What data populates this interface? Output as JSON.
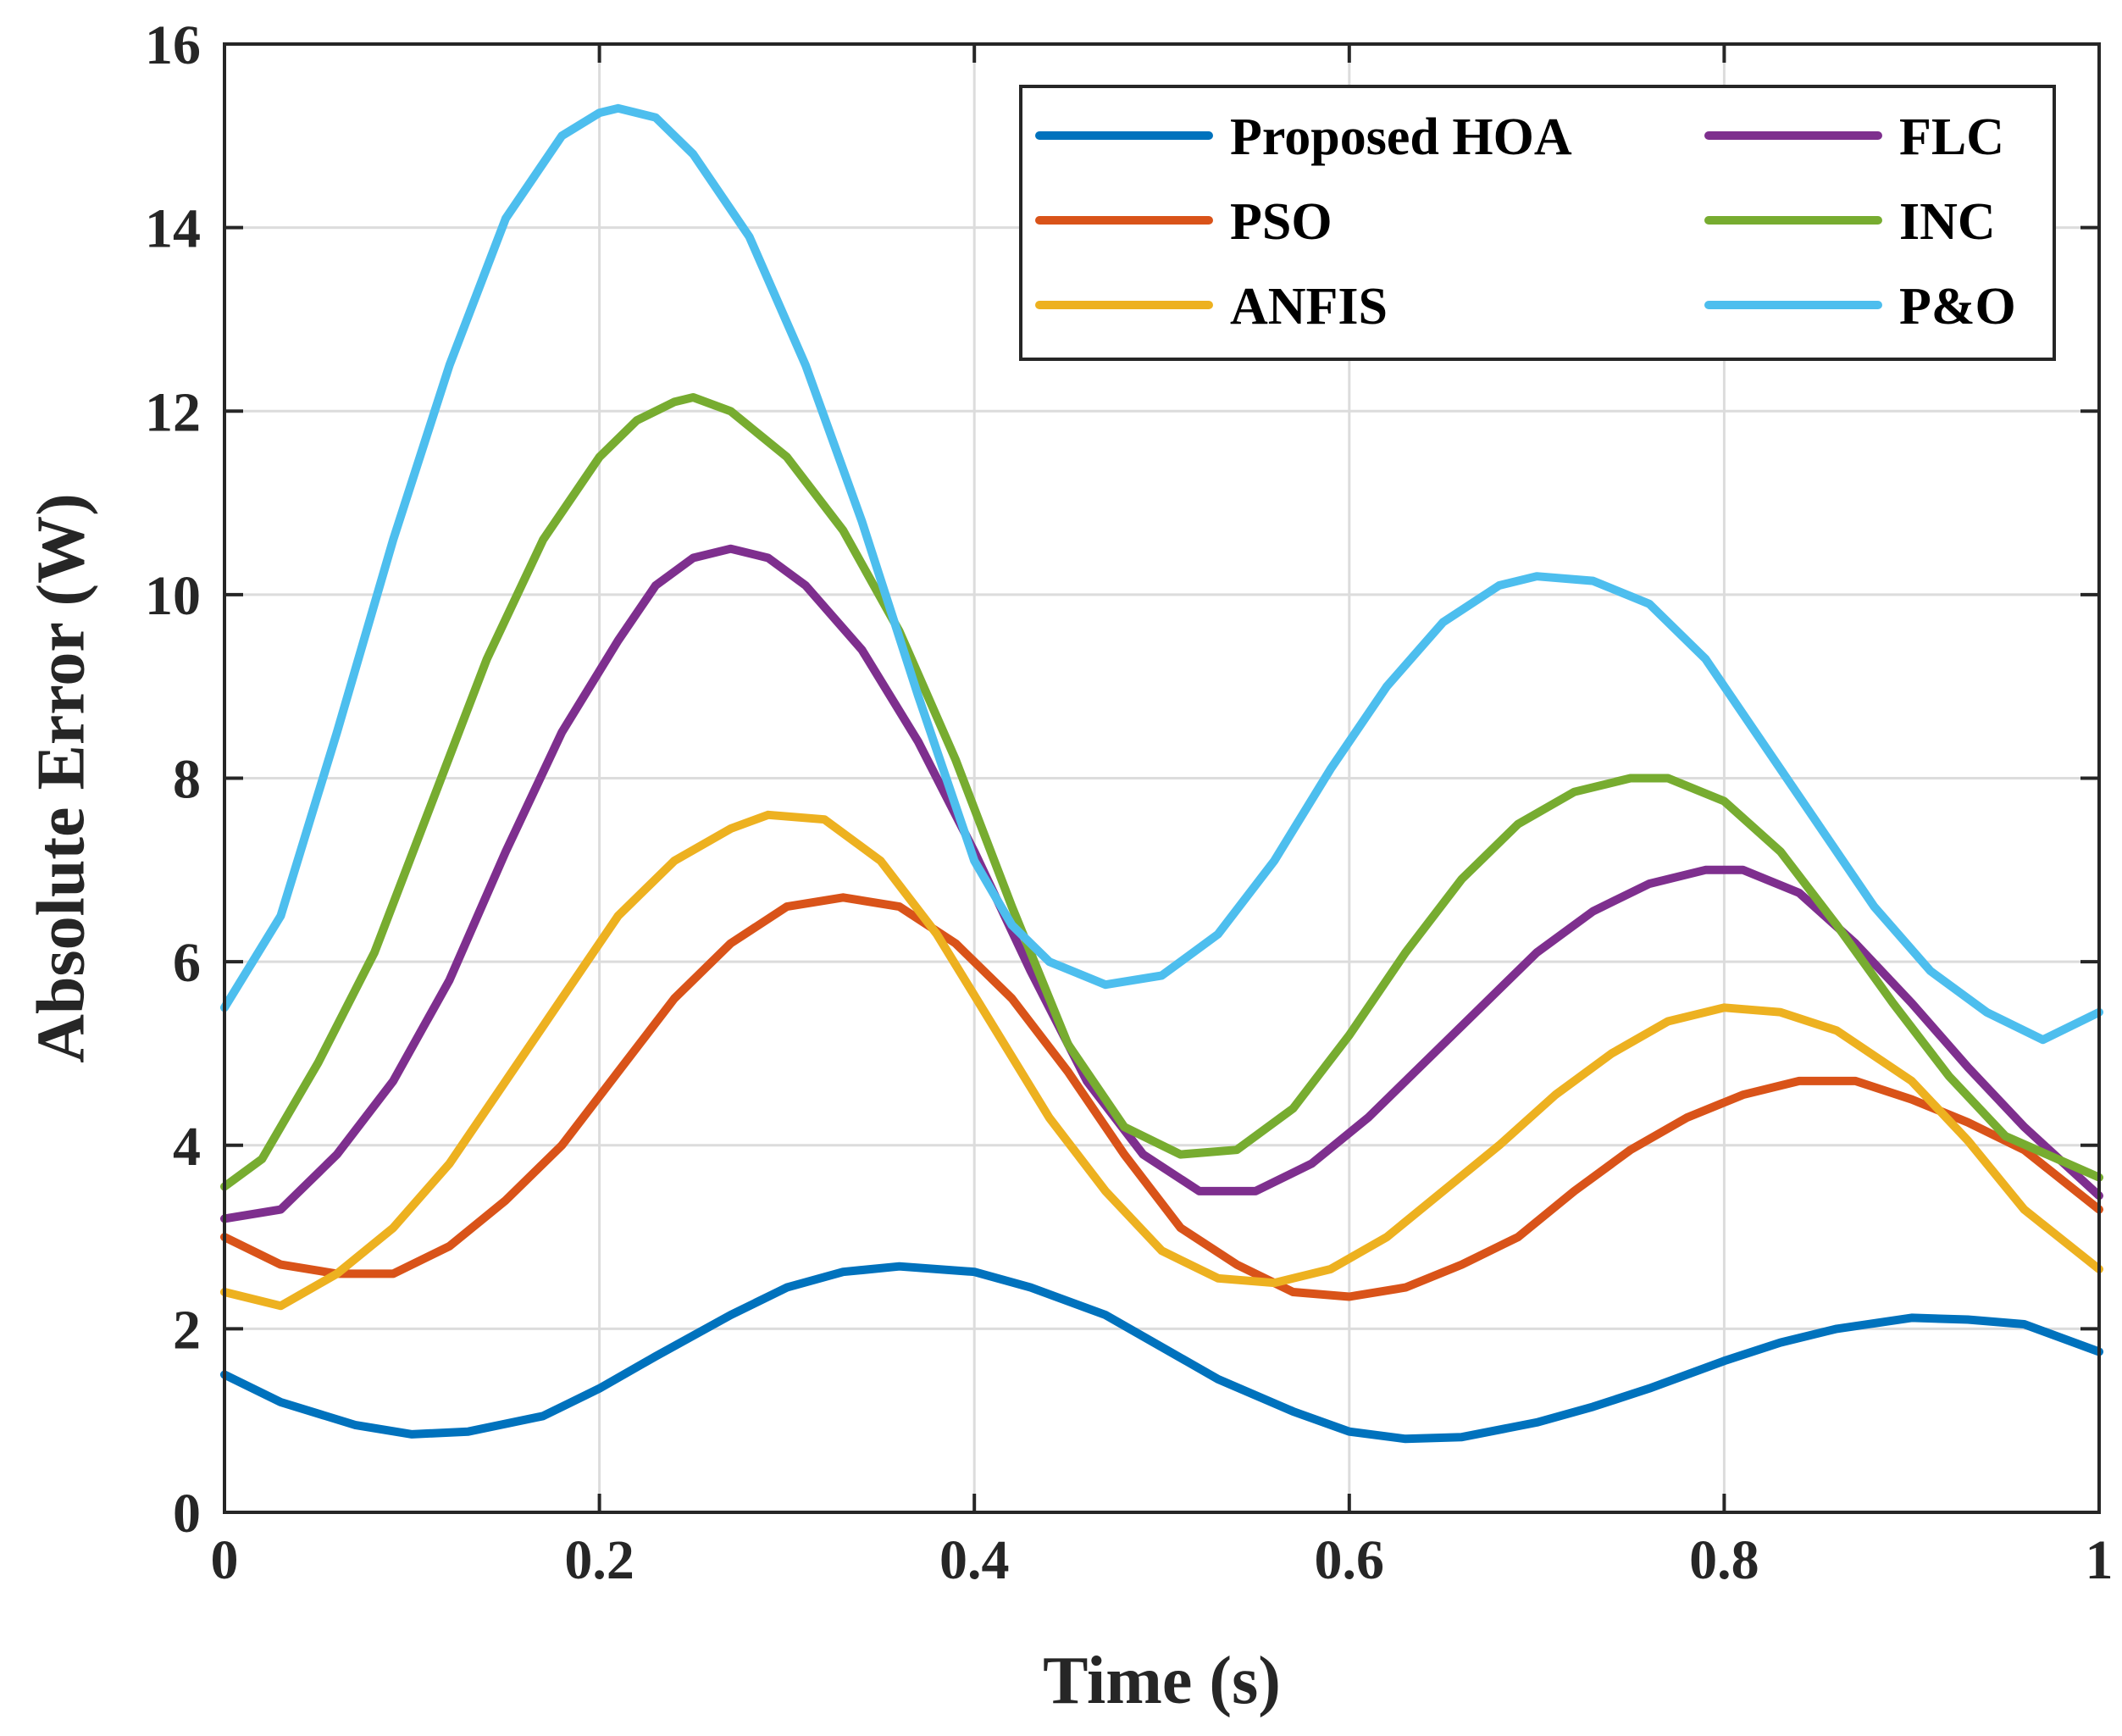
{
  "chart_data": {
    "type": "line",
    "title": "",
    "xlabel": "Time (s)",
    "ylabel": "Absolute Error (W)",
    "xlim": [
      0,
      1
    ],
    "ylim": [
      0,
      16
    ],
    "grid": true,
    "legend_position": "top-right",
    "x_ticks": [
      0,
      0.2,
      0.4,
      0.6,
      0.8,
      1
    ],
    "x_tick_labels": [
      "0",
      "0.2",
      "0.4",
      "0.6",
      "0.8",
      "1"
    ],
    "y_ticks": [
      0,
      2,
      4,
      6,
      8,
      10,
      12,
      14,
      16
    ],
    "y_tick_labels": [
      "0",
      "2",
      "4",
      "6",
      "8",
      "10",
      "12",
      "14",
      "16"
    ],
    "series": [
      {
        "name": "Proposed HOA",
        "color": "#0072BD",
        "x": [
          0,
          0.03,
          0.07,
          0.1,
          0.13,
          0.17,
          0.2,
          0.23,
          0.27,
          0.3,
          0.33,
          0.36,
          0.4,
          0.43,
          0.47,
          0.5,
          0.53,
          0.57,
          0.6,
          0.63,
          0.66,
          0.7,
          0.73,
          0.76,
          0.8,
          0.83,
          0.86,
          0.9,
          0.93,
          0.96,
          1.0
        ],
        "values": [
          1.5,
          1.2,
          0.95,
          0.85,
          0.88,
          1.05,
          1.35,
          1.7,
          2.15,
          2.45,
          2.62,
          2.68,
          2.62,
          2.45,
          2.15,
          1.8,
          1.45,
          1.1,
          0.88,
          0.8,
          0.82,
          0.98,
          1.15,
          1.35,
          1.65,
          1.85,
          2.0,
          2.12,
          2.1,
          2.05,
          1.75
        ]
      },
      {
        "name": "PSO",
        "color": "#D95319",
        "x": [
          0,
          0.03,
          0.06,
          0.09,
          0.12,
          0.15,
          0.18,
          0.21,
          0.24,
          0.27,
          0.3,
          0.33,
          0.36,
          0.39,
          0.42,
          0.45,
          0.48,
          0.51,
          0.54,
          0.57,
          0.6,
          0.63,
          0.66,
          0.69,
          0.72,
          0.75,
          0.78,
          0.81,
          0.84,
          0.87,
          0.9,
          0.93,
          0.96,
          1.0
        ],
        "values": [
          3.0,
          2.7,
          2.6,
          2.6,
          2.9,
          3.4,
          4.0,
          4.8,
          5.6,
          6.2,
          6.6,
          6.7,
          6.6,
          6.2,
          5.6,
          4.8,
          3.9,
          3.1,
          2.7,
          2.4,
          2.35,
          2.45,
          2.7,
          3.0,
          3.5,
          3.95,
          4.3,
          4.55,
          4.7,
          4.7,
          4.5,
          4.25,
          3.95,
          3.3
        ]
      },
      {
        "name": "ANFIS",
        "color": "#EDB120",
        "x": [
          0,
          0.03,
          0.06,
          0.09,
          0.12,
          0.15,
          0.18,
          0.21,
          0.24,
          0.27,
          0.29,
          0.32,
          0.35,
          0.38,
          0.41,
          0.44,
          0.47,
          0.5,
          0.53,
          0.56,
          0.59,
          0.62,
          0.65,
          0.68,
          0.71,
          0.74,
          0.77,
          0.8,
          0.83,
          0.86,
          0.9,
          0.93,
          0.96,
          1.0
        ],
        "values": [
          2.4,
          2.25,
          2.6,
          3.1,
          3.8,
          4.7,
          5.6,
          6.5,
          7.1,
          7.45,
          7.6,
          7.55,
          7.1,
          6.3,
          5.3,
          4.3,
          3.5,
          2.85,
          2.55,
          2.5,
          2.65,
          3.0,
          3.5,
          4.0,
          4.55,
          5.0,
          5.35,
          5.5,
          5.45,
          5.25,
          4.7,
          4.05,
          3.3,
          2.65
        ]
      },
      {
        "name": "FLC",
        "color": "#7E2F8E",
        "x": [
          0,
          0.03,
          0.06,
          0.09,
          0.12,
          0.15,
          0.18,
          0.21,
          0.23,
          0.25,
          0.27,
          0.29,
          0.31,
          0.34,
          0.37,
          0.4,
          0.43,
          0.46,
          0.49,
          0.52,
          0.55,
          0.58,
          0.61,
          0.64,
          0.67,
          0.7,
          0.73,
          0.76,
          0.79,
          0.81,
          0.84,
          0.87,
          0.9,
          0.93,
          0.96,
          1.0
        ],
        "values": [
          3.2,
          3.3,
          3.9,
          4.7,
          5.8,
          7.2,
          8.5,
          9.5,
          10.1,
          10.4,
          10.5,
          10.4,
          10.1,
          9.4,
          8.4,
          7.2,
          5.9,
          4.7,
          3.9,
          3.5,
          3.5,
          3.8,
          4.3,
          4.9,
          5.5,
          6.1,
          6.55,
          6.85,
          7.0,
          7.0,
          6.75,
          6.2,
          5.55,
          4.85,
          4.2,
          3.45
        ]
      },
      {
        "name": "INC",
        "color": "#77AC30",
        "x": [
          0,
          0.02,
          0.05,
          0.08,
          0.11,
          0.14,
          0.17,
          0.2,
          0.22,
          0.24,
          0.25,
          0.27,
          0.3,
          0.33,
          0.36,
          0.39,
          0.42,
          0.45,
          0.48,
          0.51,
          0.54,
          0.57,
          0.6,
          0.63,
          0.66,
          0.69,
          0.72,
          0.75,
          0.77,
          0.8,
          0.83,
          0.86,
          0.89,
          0.92,
          0.95,
          1.0
        ],
        "values": [
          3.55,
          3.85,
          4.9,
          6.1,
          7.7,
          9.3,
          10.6,
          11.5,
          11.9,
          12.1,
          12.15,
          12.0,
          11.5,
          10.7,
          9.6,
          8.2,
          6.6,
          5.1,
          4.2,
          3.9,
          3.95,
          4.4,
          5.2,
          6.1,
          6.9,
          7.5,
          7.85,
          8.0,
          8.0,
          7.75,
          7.2,
          6.4,
          5.55,
          4.75,
          4.1,
          3.65
        ]
      },
      {
        "name": "P&O",
        "color": "#4DBEEE",
        "x": [
          0,
          0.03,
          0.06,
          0.09,
          0.12,
          0.15,
          0.18,
          0.2,
          0.21,
          0.23,
          0.25,
          0.28,
          0.31,
          0.34,
          0.37,
          0.4,
          0.42,
          0.44,
          0.47,
          0.5,
          0.53,
          0.56,
          0.59,
          0.62,
          0.65,
          0.68,
          0.7,
          0.73,
          0.76,
          0.79,
          0.82,
          0.85,
          0.88,
          0.91,
          0.94,
          0.97,
          1.0
        ],
        "values": [
          5.5,
          6.5,
          8.5,
          10.6,
          12.5,
          14.1,
          15.0,
          15.25,
          15.3,
          15.2,
          14.8,
          13.9,
          12.5,
          10.8,
          8.9,
          7.1,
          6.4,
          6.0,
          5.75,
          5.85,
          6.3,
          7.1,
          8.1,
          9.0,
          9.7,
          10.1,
          10.2,
          10.15,
          9.9,
          9.3,
          8.4,
          7.5,
          6.6,
          5.9,
          5.45,
          5.15,
          5.45
        ]
      }
    ]
  }
}
